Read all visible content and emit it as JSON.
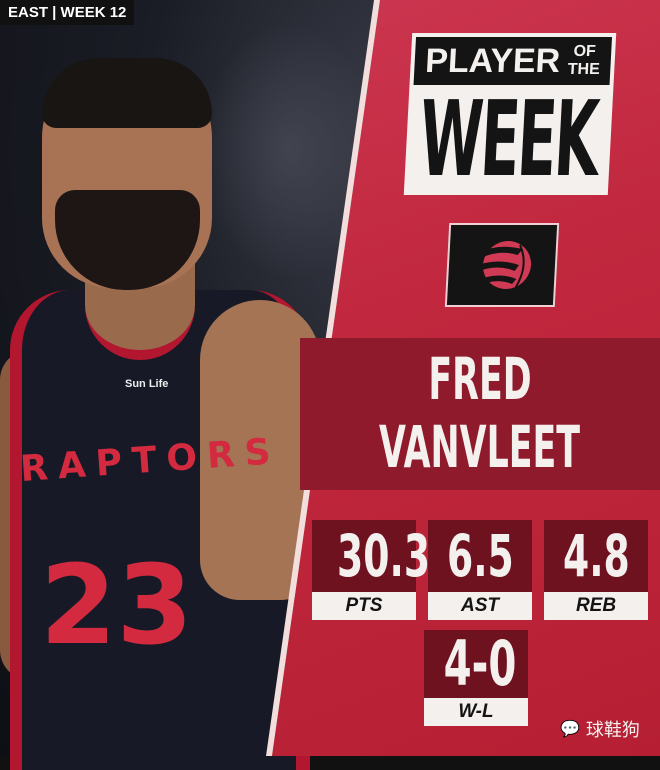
{
  "tag": "EAST | WEEK 12",
  "title": {
    "line1": "PLAYER",
    "of": "OF",
    "the": "THE",
    "line2": "WEEK"
  },
  "team_logo": "raptors-basketball-claw-icon",
  "player": {
    "first_name": "FRED",
    "last_name": "VANVLEET"
  },
  "jersey": {
    "team": "RAPTORS",
    "number": "23",
    "sponsor": "Sun Life"
  },
  "stats": [
    {
      "value": "30.3",
      "label": "PTS"
    },
    {
      "value": "6.5",
      "label": "AST"
    },
    {
      "value": "4.8",
      "label": "REB"
    },
    {
      "value": "4-0",
      "label": "W-L"
    }
  ],
  "watermark": "球鞋狗",
  "colors": {
    "panel": "#c1283f",
    "dark": "#6e1220",
    "light": "#f4f0ee"
  }
}
